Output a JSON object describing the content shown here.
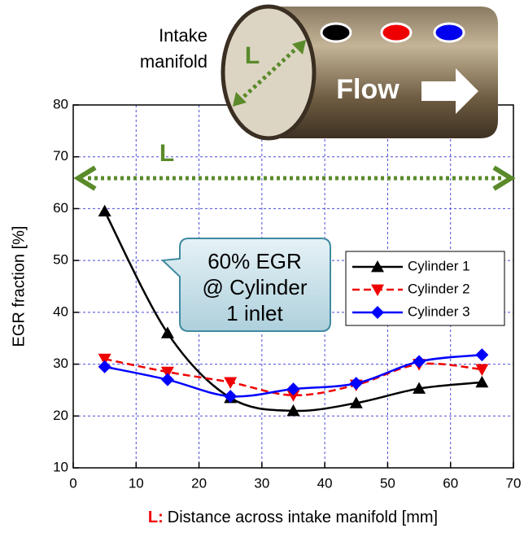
{
  "chart_data": {
    "type": "line",
    "ylabel": "EGR fraction [%]",
    "xlabel_prefix": "L:",
    "xlabel": "Distance across intake manifold [mm]",
    "x": [
      5,
      15,
      25,
      35,
      45,
      55,
      65
    ],
    "series": [
      {
        "name": "Cylinder 1",
        "color": "#000000",
        "marker": "triangle-up",
        "linestyle": "solid",
        "values": [
          59.5,
          36,
          23.5,
          21,
          22.5,
          25.3,
          26.5
        ]
      },
      {
        "name": "Cylinder 2",
        "color": "#ee0000",
        "marker": "triangle-down",
        "linestyle": "dashed",
        "values": [
          31,
          28.5,
          26.5,
          24,
          26,
          30,
          29
        ]
      },
      {
        "name": "Cylinder 3",
        "color": "#0000ff",
        "marker": "diamond",
        "linestyle": "solid",
        "values": [
          29.5,
          27,
          23.8,
          25.2,
          26.3,
          30.5,
          31.8
        ]
      }
    ],
    "xlim": [
      0,
      70
    ],
    "xticks": [
      0,
      10,
      20,
      30,
      40,
      50,
      60,
      70
    ],
    "ylim": [
      10,
      80
    ],
    "yticks": [
      10,
      20,
      30,
      40,
      50,
      60,
      70,
      80
    ],
    "grid": true,
    "legend": "right",
    "annotations": {
      "manifold_label": [
        "Intake",
        "manifold"
      ],
      "pipe_length": "L",
      "flow": "Flow",
      "span_length": "L",
      "callout": [
        "60% EGR",
        "@ Cylinder",
        "1 inlet"
      ]
    }
  }
}
